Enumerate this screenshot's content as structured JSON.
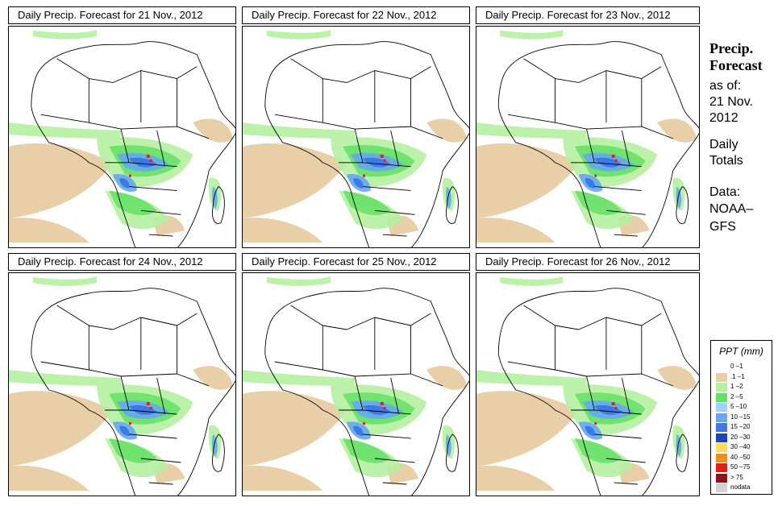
{
  "panels": [
    {
      "title": "Daily Precip. Forecast for  21 Nov., 2012"
    },
    {
      "title": "Daily Precip. Forecast for  22 Nov., 2012"
    },
    {
      "title": "Daily Precip. Forecast for  23 Nov., 2012"
    },
    {
      "title": "Daily Precip. Forecast for  24 Nov., 2012"
    },
    {
      "title": "Daily Precip. Forecast for  25 Nov., 2012"
    },
    {
      "title": "Daily Precip. Forecast for  26 Nov., 2012"
    }
  ],
  "sidebar": {
    "title_line1": "Precip.",
    "title_line2": "Forecast",
    "asof_line1": "as of:",
    "asof_line2": "21 Nov.",
    "asof_line3": "2012",
    "daily_line1": "Daily",
    "daily_line2": "Totals",
    "data_line1": "Data:",
    "data_line2": "NOAA–",
    "data_line3": "GFS"
  },
  "legend": {
    "title": "PPT (mm)",
    "items": [
      {
        "label": "0 –1",
        "color": "#ffffff"
      },
      {
        "label": ".1 –1",
        "color": "#e8cfa8"
      },
      {
        "label": "1 –2",
        "color": "#b4f0a0"
      },
      {
        "label": "2 –5",
        "color": "#64e064"
      },
      {
        "label": "5 –10",
        "color": "#a0d2f8"
      },
      {
        "label": "10 –15",
        "color": "#64a8f0"
      },
      {
        "label": "15 –20",
        "color": "#3c78e8"
      },
      {
        "label": "20 –30",
        "color": "#1e46b4"
      },
      {
        "label": "30 –40",
        "color": "#f8dc64"
      },
      {
        "label": "40 –50",
        "color": "#f88c14"
      },
      {
        "label": "50 –75",
        "color": "#e61e14"
      },
      {
        "label": "> 75",
        "color": "#8c1414"
      },
      {
        "label": "nodata",
        "color": "#d2d2d2"
      }
    ]
  }
}
